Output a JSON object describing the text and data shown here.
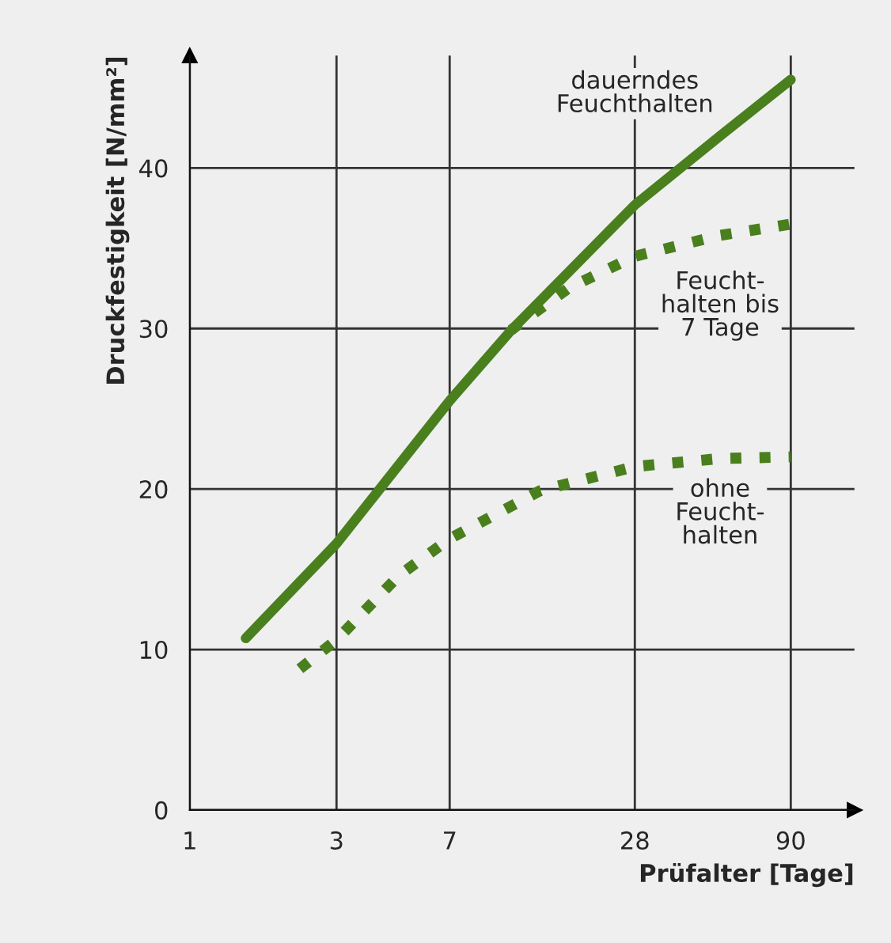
{
  "chart_data": {
    "type": "line",
    "xlabel": "Prüfalter [Tage]",
    "ylabel": "Druckfestigkeit [N/mm²]",
    "log": "x",
    "xlim": [
      1,
      145
    ],
    "xticks": [
      1,
      3,
      7,
      28,
      90
    ],
    "ylim": [
      0,
      47
    ],
    "yticks": [
      0,
      10,
      20,
      30,
      40
    ],
    "grid": true,
    "legend": false,
    "series": [
      {
        "name": "dauerndes\nFeuchthalten",
        "color": "#4a7f1e",
        "line_style": "solid",
        "x": [
          1.52,
          3,
          7,
          11.1,
          28,
          53,
          90
        ],
        "values": [
          10.7,
          16.6,
          25.5,
          29.9,
          37.7,
          42,
          45.5
        ]
      },
      {
        "name": "Feucht-\nhalten bis\n7 Tage",
        "color": "#4a7f1e",
        "line_style": "dotted",
        "x": [
          11.1,
          11.8,
          17,
          28,
          53,
          90
        ],
        "values": [
          29.9,
          30.3,
          32.5,
          34.5,
          35.8,
          36.5
        ]
      },
      {
        "name": "ohne\nFeucht-\nhalten",
        "color": "#4a7f1e",
        "line_style": "dotted",
        "x": [
          2.28,
          3,
          4.78,
          7,
          13.8,
          28,
          53,
          90
        ],
        "values": [
          8.8,
          10.6,
          14.6,
          16.9,
          19.9,
          21.4,
          21.9,
          22
        ]
      }
    ]
  }
}
